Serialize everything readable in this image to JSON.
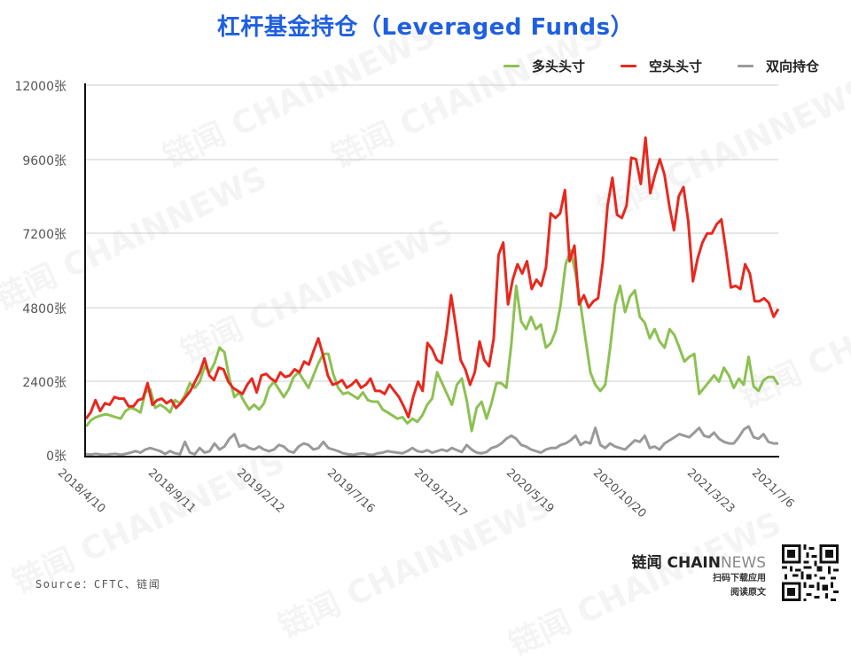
{
  "title": "杠杆基金持仓（Leveraged Funds）",
  "legend": [
    {
      "label": "多头头寸",
      "color": "#8cc152"
    },
    {
      "label": "空头头寸",
      "color": "#e8281e"
    },
    {
      "label": "双向持仓",
      "color": "#9a9a9a"
    }
  ],
  "y_ticks": [
    "12000张",
    "9600张",
    "7200张",
    "4800张",
    "2400张",
    "0张"
  ],
  "x_ticks": [
    "2018/4/10",
    "2018/9/11",
    "2019/2/12",
    "2019/7/16",
    "2019/12/17",
    "2020/5/19",
    "2020/10/20",
    "2021/3/23",
    "2021/7/6"
  ],
  "source": "Source：CFTC、链闻",
  "brand": {
    "name_bold": "链闻 CHAIN",
    "name_light": "NEWS",
    "line1": "扫码下载应用",
    "line2": "阅读原文"
  },
  "watermark": "链闻 CHAINNEWS",
  "chart_data": {
    "type": "line",
    "title": "杠杆基金持仓（Leveraged Funds）",
    "xlabel": "",
    "ylabel": "张",
    "ylim": [
      0,
      12000
    ],
    "yticks": [
      0,
      2400,
      4800,
      7200,
      9600,
      12000
    ],
    "grid": "horizontal",
    "legend_position": "top-right",
    "x_tick_labels": [
      "2018/4/10",
      "2018/9/11",
      "2019/2/12",
      "2019/7/16",
      "2019/12/17",
      "2020/5/19",
      "2020/10/20",
      "2021/3/23",
      "2021/7/6"
    ],
    "series": [
      {
        "name": "多头头寸",
        "color": "#8cc152",
        "values": [
          950,
          1150,
          1250,
          1300,
          1350,
          1300,
          1250,
          1200,
          1450,
          1550,
          1500,
          1400,
          2050,
          2150,
          1550,
          1650,
          1550,
          1400,
          1800,
          1700,
          1950,
          2350,
          2200,
          2400,
          2900,
          2700,
          3000,
          3500,
          3350,
          2500,
          1900,
          2050,
          1750,
          1500,
          1650,
          1500,
          1700,
          2200,
          2400,
          2150,
          1900,
          2150,
          2550,
          2700,
          2450,
          2200,
          2600,
          3000,
          3300,
          3300,
          2650,
          2200,
          2000,
          2050,
          1950,
          1850,
          2050,
          1800,
          1750,
          1750,
          1500,
          1400,
          1300,
          1200,
          1250,
          1050,
          1200,
          1100,
          1300,
          1650,
          1850,
          2700,
          2350,
          2000,
          1650,
          2300,
          2500,
          1800,
          800,
          1550,
          1750,
          1200,
          1700,
          2350,
          2350,
          2200,
          3600,
          5500,
          4350,
          4100,
          4500,
          4100,
          4250,
          3500,
          3650,
          4050,
          4900,
          6200,
          6650,
          5900,
          4900,
          3800,
          2700,
          2300,
          2100,
          2300,
          3500,
          4900,
          5500,
          4650,
          5150,
          5350,
          4500,
          4300,
          3800,
          4100,
          3700,
          3500,
          4100,
          3900,
          3500,
          3050,
          3200,
          3300,
          2000,
          2200,
          2400,
          2600,
          2400,
          2850,
          2600,
          2200,
          2500,
          2300,
          3200,
          2250,
          2100,
          2450,
          2550,
          2550,
          2300
        ]
      },
      {
        "name": "空头头寸",
        "color": "#e8281e",
        "values": [
          1200,
          1400,
          1800,
          1450,
          1700,
          1650,
          1900,
          1850,
          1850,
          1600,
          1600,
          1800,
          1850,
          2350,
          1650,
          1800,
          1850,
          1700,
          1800,
          1550,
          1700,
          1900,
          2100,
          2400,
          2700,
          3150,
          2600,
          2450,
          2850,
          2800,
          2400,
          2200,
          2100,
          2000,
          2300,
          2500,
          2050,
          2600,
          2650,
          2500,
          2400,
          2700,
          2550,
          2600,
          2800,
          2700,
          3050,
          2950,
          3400,
          3800,
          3250,
          2600,
          2300,
          2350,
          2450,
          2200,
          2300,
          2450,
          2200,
          2300,
          2500,
          2100,
          2100,
          2000,
          2300,
          2100,
          1900,
          1600,
          1250,
          1900,
          2400,
          2100,
          3650,
          3450,
          3100,
          3000,
          3950,
          5200,
          4200,
          3100,
          2800,
          2300,
          2700,
          3700,
          3100,
          2900,
          3800,
          6500,
          6900,
          4900,
          5700,
          6200,
          5900,
          6300,
          5400,
          5700,
          5500,
          6100,
          7850,
          7700,
          7850,
          8600,
          6300,
          6800,
          4900,
          5200,
          4800,
          5000,
          5100,
          6300,
          8100,
          9000,
          7800,
          7700,
          8100,
          9650,
          9600,
          8800,
          10300,
          8500,
          9100,
          9600,
          9100,
          8100,
          7300,
          8400,
          8700,
          7600,
          5650,
          6400,
          6900,
          7200,
          7200,
          7500,
          7650,
          6600,
          5450,
          5500,
          5400,
          6200,
          5900,
          5000,
          5000,
          5100,
          4950,
          4500,
          4750
        ]
      },
      {
        "name": "双向持仓",
        "color": "#9a9a9a",
        "values": [
          50,
          40,
          60,
          40,
          30,
          50,
          60,
          30,
          60,
          100,
          150,
          100,
          200,
          250,
          200,
          150,
          60,
          150,
          80,
          50,
          450,
          100,
          50,
          250,
          100,
          150,
          400,
          200,
          300,
          550,
          700,
          300,
          350,
          250,
          200,
          300,
          200,
          150,
          200,
          350,
          300,
          150,
          100,
          300,
          400,
          350,
          200,
          250,
          450,
          250,
          200,
          150,
          80,
          50,
          30,
          60,
          80,
          40,
          30,
          80,
          100,
          150,
          120,
          100,
          80,
          150,
          250,
          150,
          120,
          180,
          100,
          150,
          200,
          150,
          250,
          180,
          120,
          350,
          200,
          100,
          80,
          120,
          250,
          300,
          400,
          550,
          650,
          550,
          350,
          300,
          200,
          150,
          100,
          200,
          250,
          250,
          350,
          400,
          500,
          650,
          350,
          450,
          400,
          900,
          350,
          250,
          400,
          300,
          250,
          200,
          350,
          500,
          450,
          650,
          250,
          300,
          200,
          400,
          500,
          600,
          700,
          650,
          600,
          750,
          900,
          650,
          600,
          750,
          550,
          450,
          400,
          400,
          600,
          850,
          950,
          600,
          550,
          700,
          450,
          400,
          400
        ]
      }
    ]
  }
}
